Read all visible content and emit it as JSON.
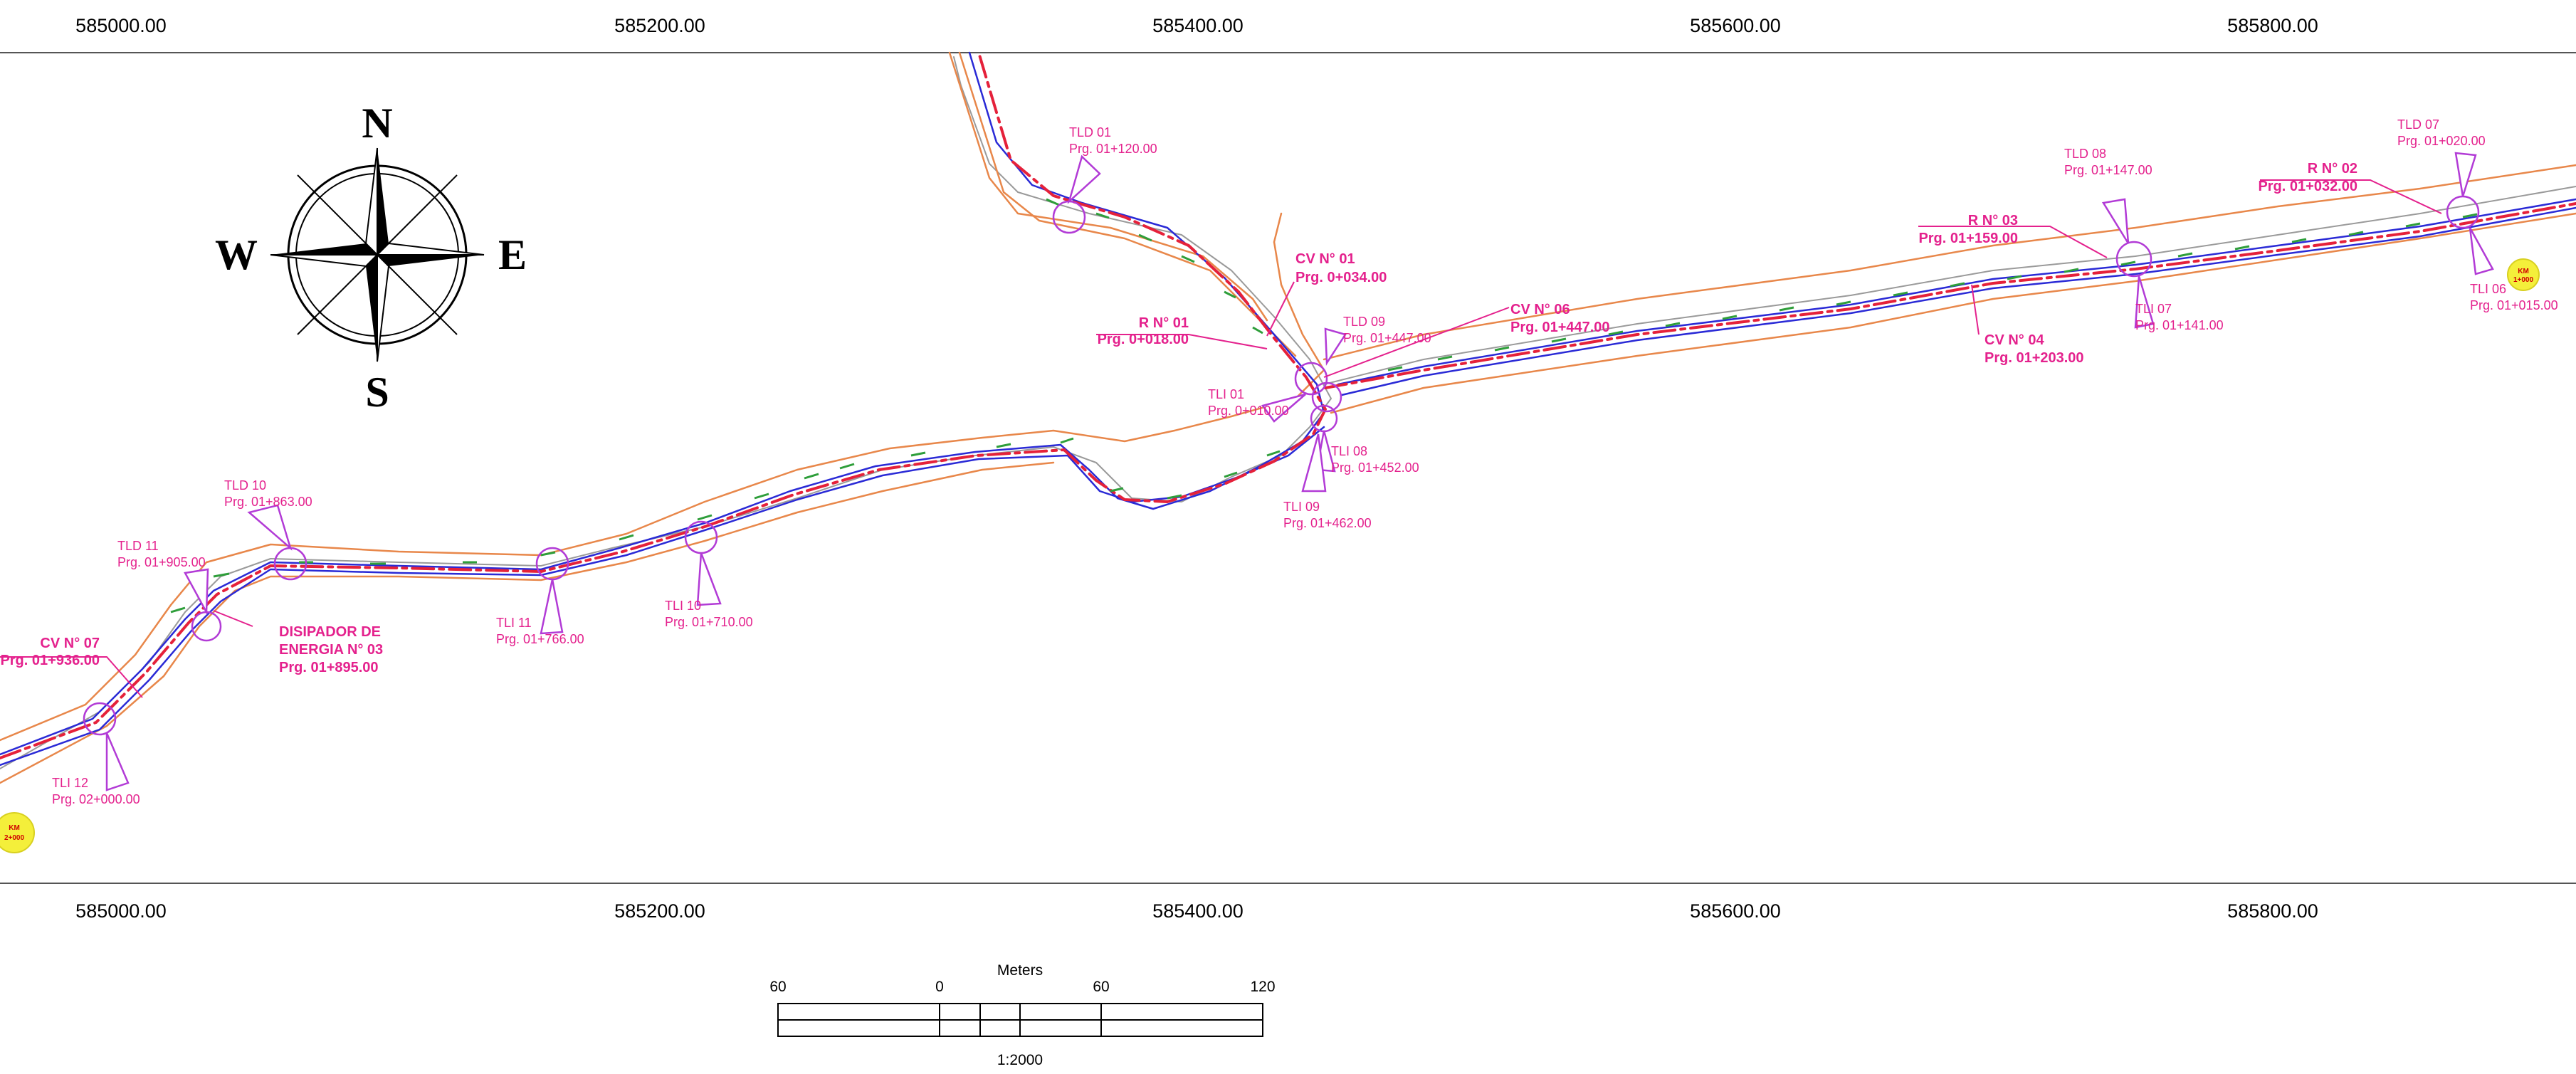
{
  "top_coords": [
    "585000.00",
    "585200.00",
    "585400.00",
    "585600.00",
    "585800.00"
  ],
  "bottom_coords": [
    "585000.00",
    "585200.00",
    "585400.00",
    "585600.00",
    "585800.00"
  ],
  "compass": {
    "north": "N",
    "south": "S",
    "east": "E",
    "west": "W"
  },
  "scale_bar": {
    "title": "Meters",
    "ticks": [
      "60",
      "0",
      "60",
      "120"
    ],
    "ratio": "1:2000"
  },
  "km_markers": [
    {
      "line1": "KM",
      "line2": "1+000"
    },
    {
      "line1": "KM",
      "line2": "2+000"
    }
  ],
  "labels": [
    {
      "id": "tld01",
      "lines": [
        "TLD 01",
        "Prg. 01+120.00"
      ]
    },
    {
      "id": "cv01",
      "lines": [
        "CV N° 01",
        "Prg. 0+034.00"
      ]
    },
    {
      "id": "r01",
      "lines": [
        "R N° 01",
        "Prg. 0+018.00"
      ]
    },
    {
      "id": "tld09",
      "lines": [
        "TLD 09",
        "Prg. 01+447.00"
      ]
    },
    {
      "id": "cv06",
      "lines": [
        "CV N° 06",
        "Prg. 01+447.00"
      ]
    },
    {
      "id": "tli01",
      "lines": [
        "TLI 01",
        "Prg. 0+010.00"
      ]
    },
    {
      "id": "tli08",
      "lines": [
        "TLI 08",
        "Prg. 01+452.00"
      ]
    },
    {
      "id": "tli09",
      "lines": [
        "TLI 09",
        "Prg. 01+462.00"
      ]
    },
    {
      "id": "tld08",
      "lines": [
        "TLD 08",
        "Prg. 01+147.00"
      ]
    },
    {
      "id": "r03",
      "lines": [
        "R N° 03",
        "Prg. 01+159.00"
      ]
    },
    {
      "id": "cv04",
      "lines": [
        "CV N° 04",
        "Prg. 01+203.00"
      ]
    },
    {
      "id": "tli07",
      "lines": [
        "TLI 07",
        "Prg. 01+141.00"
      ]
    },
    {
      "id": "r02",
      "lines": [
        "R N° 02",
        "Prg. 01+032.00"
      ]
    },
    {
      "id": "tld07",
      "lines": [
        "TLD 07",
        "Prg. 01+020.00"
      ]
    },
    {
      "id": "tli06",
      "lines": [
        "TLI 06",
        "Prg. 01+015.00"
      ]
    },
    {
      "id": "tld10",
      "lines": [
        "TLD 10",
        "Prg. 01+863.00"
      ]
    },
    {
      "id": "tld11",
      "lines": [
        "TLD 11",
        "Prg. 01+905.00"
      ]
    },
    {
      "id": "disipador",
      "lines": [
        "DISIPADOR DE",
        "ENERGIA N° 03",
        "Prg. 01+895.00"
      ]
    },
    {
      "id": "cv07",
      "lines": [
        "CV N° 07",
        "Prg. 01+936.00"
      ]
    },
    {
      "id": "tli11",
      "lines": [
        "TLI 11",
        "Prg. 01+766.00"
      ]
    },
    {
      "id": "tli10",
      "lines": [
        "TLI 10",
        "Prg. 01+710.00"
      ]
    },
    {
      "id": "tli12",
      "lines": [
        "TLI 12",
        "Prg. 02+000.00"
      ]
    }
  ],
  "colors": {
    "label": "#e4218d",
    "road_centerline": "#e5213a",
    "road_edge": "#2a2ad6",
    "terrain_edge": "#e8874a",
    "marker_circle": "#b23bd6",
    "vegetation": "#2e9e3a",
    "km_marker": "#f4ef3a"
  }
}
